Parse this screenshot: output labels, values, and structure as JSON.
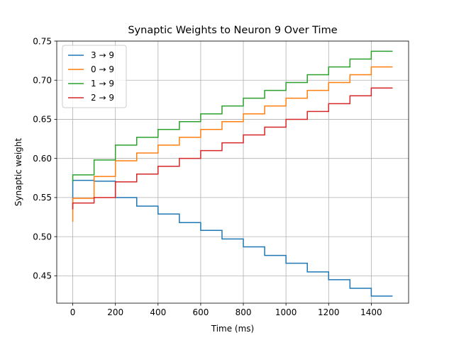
{
  "chart_data": {
    "type": "line",
    "step": true,
    "title": "Synaptic Weights to Neuron 9 Over Time",
    "xlabel": "Time (ms)",
    "ylabel": "Synaptic weight",
    "xlim": [
      -75,
      1575
    ],
    "ylim": [
      0.415,
      0.75
    ],
    "xticks": [
      0,
      200,
      400,
      600,
      800,
      1000,
      1200,
      1400
    ],
    "yticks": [
      0.45,
      0.5,
      0.55,
      0.6,
      0.65,
      0.7,
      0.75
    ],
    "grid": true,
    "legend_position": "upper-left",
    "series": [
      {
        "name": "3 → 9",
        "color": "#1f77b4",
        "points": [
          [
            0,
            0.535
          ],
          [
            0,
            0.572
          ],
          [
            100,
            0.572
          ],
          [
            100,
            0.571
          ],
          [
            200,
            0.571
          ],
          [
            200,
            0.55
          ],
          [
            300,
            0.55
          ],
          [
            300,
            0.539
          ],
          [
            400,
            0.539
          ],
          [
            400,
            0.529
          ],
          [
            500,
            0.529
          ],
          [
            500,
            0.518
          ],
          [
            600,
            0.518
          ],
          [
            600,
            0.508
          ],
          [
            700,
            0.508
          ],
          [
            700,
            0.497
          ],
          [
            800,
            0.497
          ],
          [
            800,
            0.487
          ],
          [
            900,
            0.487
          ],
          [
            900,
            0.476
          ],
          [
            1000,
            0.476
          ],
          [
            1000,
            0.466
          ],
          [
            1100,
            0.466
          ],
          [
            1100,
            0.455
          ],
          [
            1200,
            0.455
          ],
          [
            1200,
            0.445
          ],
          [
            1300,
            0.445
          ],
          [
            1300,
            0.434
          ],
          [
            1400,
            0.434
          ],
          [
            1400,
            0.424
          ],
          [
            1500,
            0.424
          ]
        ]
      },
      {
        "name": "0 → 9",
        "color": "#ff7f0e",
        "points": [
          [
            0,
            0.519
          ],
          [
            0,
            0.549
          ],
          [
            100,
            0.549
          ],
          [
            100,
            0.577
          ],
          [
            200,
            0.577
          ],
          [
            200,
            0.597
          ],
          [
            300,
            0.597
          ],
          [
            300,
            0.607
          ],
          [
            400,
            0.607
          ],
          [
            400,
            0.617
          ],
          [
            500,
            0.617
          ],
          [
            500,
            0.627
          ],
          [
            600,
            0.627
          ],
          [
            600,
            0.637
          ],
          [
            700,
            0.637
          ],
          [
            700,
            0.647
          ],
          [
            800,
            0.647
          ],
          [
            800,
            0.657
          ],
          [
            900,
            0.657
          ],
          [
            900,
            0.667
          ],
          [
            1000,
            0.667
          ],
          [
            1000,
            0.677
          ],
          [
            1100,
            0.677
          ],
          [
            1100,
            0.687
          ],
          [
            1200,
            0.687
          ],
          [
            1200,
            0.697
          ],
          [
            1300,
            0.697
          ],
          [
            1300,
            0.707
          ],
          [
            1400,
            0.707
          ],
          [
            1400,
            0.717
          ],
          [
            1500,
            0.717
          ]
        ]
      },
      {
        "name": "1 → 9",
        "color": "#2ca02c",
        "points": [
          [
            0,
            0.57
          ],
          [
            0,
            0.579
          ],
          [
            100,
            0.579
          ],
          [
            100,
            0.598
          ],
          [
            200,
            0.598
          ],
          [
            200,
            0.617
          ],
          [
            300,
            0.617
          ],
          [
            300,
            0.627
          ],
          [
            400,
            0.627
          ],
          [
            400,
            0.637
          ],
          [
            500,
            0.637
          ],
          [
            500,
            0.647
          ],
          [
            600,
            0.647
          ],
          [
            600,
            0.657
          ],
          [
            700,
            0.657
          ],
          [
            700,
            0.667
          ],
          [
            800,
            0.667
          ],
          [
            800,
            0.677
          ],
          [
            900,
            0.677
          ],
          [
            900,
            0.687
          ],
          [
            1000,
            0.687
          ],
          [
            1000,
            0.697
          ],
          [
            1100,
            0.697
          ],
          [
            1100,
            0.707
          ],
          [
            1200,
            0.707
          ],
          [
            1200,
            0.717
          ],
          [
            1300,
            0.717
          ],
          [
            1300,
            0.727
          ],
          [
            1400,
            0.727
          ],
          [
            1400,
            0.737
          ],
          [
            1500,
            0.737
          ]
        ]
      },
      {
        "name": "2 → 9",
        "color": "#d62728",
        "points": [
          [
            0,
            0.535
          ],
          [
            0,
            0.543
          ],
          [
            100,
            0.543
          ],
          [
            100,
            0.55
          ],
          [
            200,
            0.55
          ],
          [
            200,
            0.57
          ],
          [
            300,
            0.57
          ],
          [
            300,
            0.58
          ],
          [
            400,
            0.58
          ],
          [
            400,
            0.59
          ],
          [
            500,
            0.59
          ],
          [
            500,
            0.6
          ],
          [
            600,
            0.6
          ],
          [
            600,
            0.61
          ],
          [
            700,
            0.61
          ],
          [
            700,
            0.62
          ],
          [
            800,
            0.62
          ],
          [
            800,
            0.63
          ],
          [
            900,
            0.63
          ],
          [
            900,
            0.64
          ],
          [
            1000,
            0.64
          ],
          [
            1000,
            0.65
          ],
          [
            1100,
            0.65
          ],
          [
            1100,
            0.66
          ],
          [
            1200,
            0.66
          ],
          [
            1200,
            0.67
          ],
          [
            1300,
            0.67
          ],
          [
            1300,
            0.68
          ],
          [
            1400,
            0.68
          ],
          [
            1400,
            0.69
          ],
          [
            1500,
            0.69
          ]
        ]
      }
    ]
  }
}
